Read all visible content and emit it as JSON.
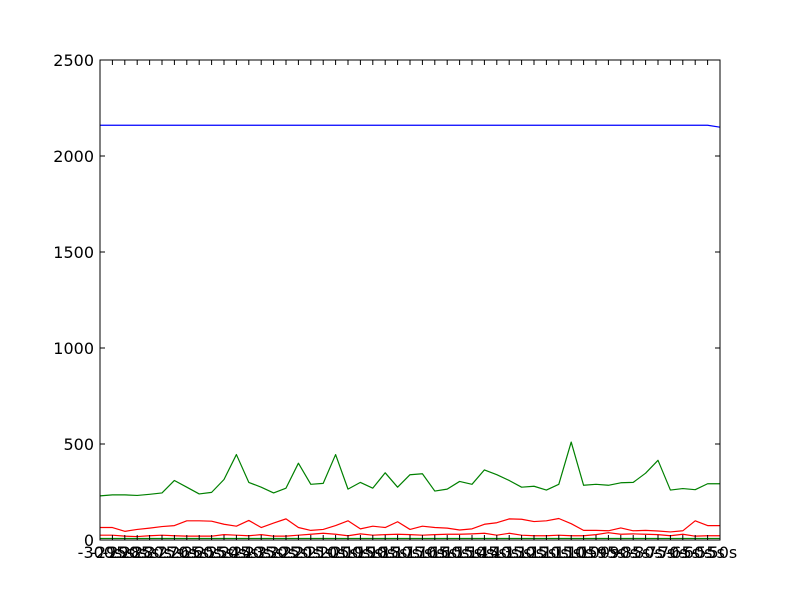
{
  "chart_data": {
    "type": "line",
    "title": "",
    "xlabel": "",
    "ylabel": "",
    "ylim": [
      0,
      2500
    ],
    "grid": false,
    "legend": "none",
    "yticks": [
      0,
      500,
      1000,
      1500,
      2000,
      2500
    ],
    "ytick_labels": [
      "0",
      "500",
      "1000",
      "1500",
      "2000",
      "2500"
    ],
    "xticks": [
      -300,
      -295,
      -290,
      -285,
      -280,
      -275,
      -270,
      -265,
      -260,
      -255,
      -250,
      -245,
      -240,
      -235,
      -230,
      -225,
      -220,
      -215,
      -210,
      -205,
      -200,
      -195,
      -190,
      -185,
      -180,
      -175,
      -170,
      -165,
      -160,
      -155,
      -150,
      -145,
      -140,
      -135,
      -130,
      -125,
      -120,
      -115,
      -110,
      -105,
      -100,
      -95,
      -90,
      -85,
      -80,
      -75,
      -70,
      -65,
      -60,
      -55,
      -50
    ],
    "xtick_labels": [
      "-300s",
      "-295s",
      "-290s",
      "-285s",
      "-280s",
      "-275s",
      "-270s",
      "-265s",
      "-260s",
      "-255s",
      "-250s",
      "-245s",
      "-240s",
      "-235s",
      "-230s",
      "-225s",
      "-220s",
      "-215s",
      "-210s",
      "-205s",
      "-200s",
      "-195s",
      "-190s",
      "-185s",
      "-180s",
      "-175s",
      "-170s",
      "-165s",
      "-160s",
      "-155s",
      "-150s",
      "-145s",
      "-140s",
      "-135s",
      "-130s",
      "-125s",
      "-120s",
      "-115s",
      "-110s",
      "-105s",
      "-100s",
      "-95s",
      "-90s",
      "-85s",
      "-80s",
      "-75s",
      "-70s",
      "-65s",
      "-60s",
      "-55s",
      "-50s"
    ],
    "xlim": [
      -300,
      -50
    ],
    "x": [
      -300,
      -295,
      -290,
      -285,
      -280,
      -275,
      -270,
      -265,
      -260,
      -255,
      -250,
      -245,
      -240,
      -235,
      -230,
      -225,
      -220,
      -215,
      -210,
      -205,
      -200,
      -195,
      -190,
      -185,
      -180,
      -175,
      -170,
      -165,
      -160,
      -155,
      -150,
      -145,
      -140,
      -135,
      -130,
      -125,
      -120,
      -115,
      -110,
      -105,
      -100,
      -95,
      -90,
      -85,
      -80,
      -75,
      -70,
      -65,
      -60,
      -55,
      -50
    ],
    "series": [
      {
        "color": "#0000ff",
        "values": [
          2160,
          2160,
          2160,
          2160,
          2160,
          2160,
          2160,
          2160,
          2160,
          2160,
          2160,
          2160,
          2160,
          2160,
          2160,
          2160,
          2160,
          2160,
          2160,
          2160,
          2160,
          2160,
          2160,
          2160,
          2160,
          2160,
          2160,
          2160,
          2160,
          2160,
          2160,
          2160,
          2160,
          2160,
          2160,
          2160,
          2160,
          2160,
          2160,
          2160,
          2160,
          2160,
          2160,
          2160,
          2160,
          2160,
          2160,
          2160,
          2160,
          2160,
          2150
        ]
      },
      {
        "color": "#008000",
        "values": [
          230,
          235,
          235,
          232,
          238,
          245,
          310,
          275,
          240,
          248,
          315,
          445,
          300,
          275,
          245,
          270,
          400,
          290,
          295,
          445,
          265,
          300,
          270,
          350,
          275,
          340,
          345,
          255,
          265,
          305,
          290,
          365,
          340,
          310,
          275,
          280,
          260,
          290,
          510,
          285,
          290,
          285,
          298,
          300,
          348,
          415,
          260,
          268,
          262,
          293,
          293
        ]
      },
      {
        "color": "#ff0000",
        "values": [
          65,
          65,
          45,
          55,
          62,
          70,
          75,
          100,
          100,
          98,
          82,
          72,
          102,
          65,
          88,
          110,
          65,
          50,
          55,
          75,
          100,
          58,
          72,
          65,
          95,
          55,
          72,
          65,
          62,
          52,
          58,
          82,
          90,
          110,
          108,
          96,
          100,
          112,
          85,
          50,
          50,
          48,
          63,
          48,
          50,
          47,
          42,
          48,
          100,
          75,
          75
        ]
      },
      {
        "color": "#ff0000",
        "values": [
          25,
          25,
          20,
          18,
          22,
          25,
          22,
          20,
          20,
          20,
          28,
          25,
          22,
          28,
          20,
          20,
          25,
          30,
          35,
          30,
          22,
          32,
          25,
          28,
          30,
          28,
          25,
          28,
          30,
          30,
          32,
          35,
          25,
          35,
          25,
          22,
          22,
          25,
          22,
          22,
          28,
          38,
          30,
          32,
          30,
          28,
          22,
          30,
          20,
          22,
          22
        ]
      },
      {
        "color": "#008000",
        "values": [
          8,
          8,
          8,
          8,
          8,
          8,
          8,
          8,
          8,
          8,
          8,
          8,
          8,
          8,
          8,
          8,
          8,
          8,
          8,
          8,
          8,
          8,
          8,
          8,
          8,
          8,
          8,
          8,
          8,
          8,
          8,
          8,
          8,
          8,
          8,
          8,
          8,
          8,
          8,
          8,
          8,
          8,
          8,
          8,
          8,
          8,
          8,
          8,
          8,
          8,
          8
        ]
      }
    ]
  }
}
